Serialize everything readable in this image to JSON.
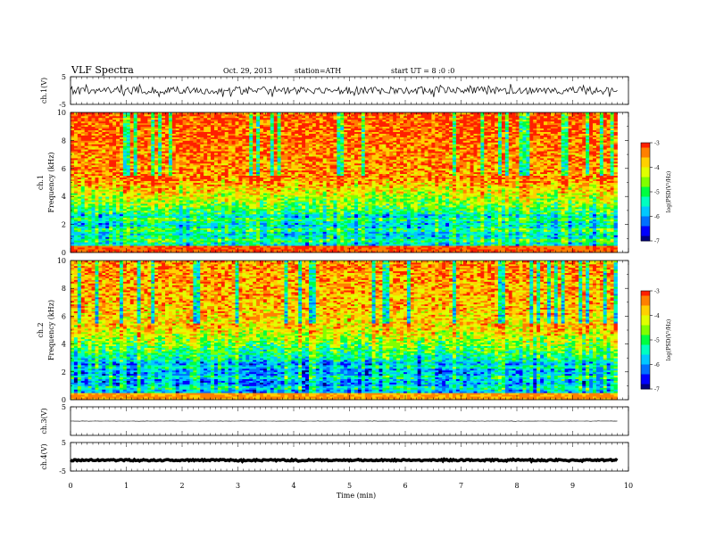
{
  "header": {
    "title": "VLF  Spectra",
    "date": "Oct. 29, 2013",
    "station": "station=ATH",
    "start_ut": "start  UT  =   8  :0  :0"
  },
  "chart_data": {
    "type": "heatmap",
    "xlabel": "Time  (min)",
    "xlim": [
      0,
      10
    ],
    "x_ticks": [
      "0",
      "1",
      "2",
      "3",
      "4",
      "5",
      "6",
      "7",
      "8",
      "9",
      "10"
    ],
    "data_end_min": 9.8,
    "panels": [
      {
        "kind": "waveform",
        "ylabel": "ch.1(V)",
        "ylim": [
          -5,
          5
        ],
        "y_ticks": [
          "5",
          "-5"
        ],
        "level": 0,
        "amplitude": 1.4
      },
      {
        "kind": "spectrogram",
        "ylabel_top": "ch.1",
        "ylabel": "Frequency  (kHz)",
        "ylim": [
          0,
          10
        ],
        "y_ticks": [
          "0",
          "2",
          "4",
          "6",
          "8",
          "10"
        ],
        "colorbar": {
          "label": "log(PSD(V²/Hz)",
          "min": -7,
          "max": -3,
          "ticks": [
            "-3",
            "-4",
            "-5",
            "-6",
            "-7"
          ]
        }
      },
      {
        "kind": "spectrogram",
        "ylabel_top": "ch.2",
        "ylabel": "Frequency  (kHz)",
        "ylim": [
          0,
          10
        ],
        "y_ticks": [
          "0",
          "2",
          "4",
          "6",
          "8",
          "10"
        ],
        "colorbar": {
          "label": "log(PSD(V²/Hz)",
          "min": -7,
          "max": -3,
          "ticks": [
            "-3",
            "-4",
            "-5",
            "-6",
            "-7"
          ]
        }
      },
      {
        "kind": "waveform",
        "ylabel": "ch.3(V)",
        "ylim": [
          -5,
          5
        ],
        "y_ticks": [
          "5"
        ],
        "level": 0,
        "amplitude": 0.05
      },
      {
        "kind": "waveform",
        "ylabel": "ch.4(V)",
        "ylim": [
          -5,
          5
        ],
        "y_ticks": [
          "5",
          "-5"
        ],
        "level": -1.2,
        "amplitude": 0.25
      }
    ]
  }
}
